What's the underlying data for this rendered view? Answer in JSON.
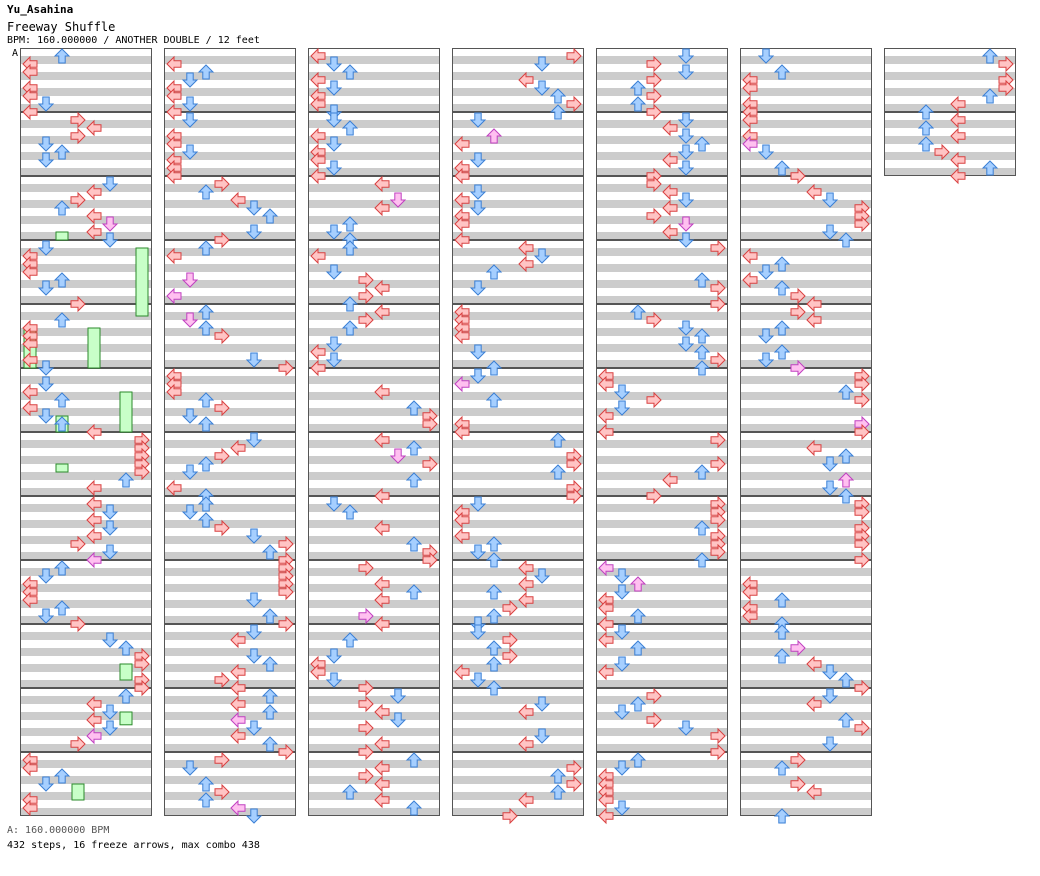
{
  "header": {
    "artist": "Yu_Asahina",
    "title": "Freeway Shuffle",
    "bpm_line": "BPM: 160.000000 / ANOTHER DOUBLE / 12 feet",
    "section_marker": "A"
  },
  "footer": {
    "bpm_note": "A: 160.000000 BPM",
    "stats": "432 steps, 16 freeze arrows, max combo 438"
  },
  "colors": {
    "page_background": "#ffffff",
    "stripe_gray": "#cccccc",
    "measure_border": "#555555",
    "arrow_red_fill": "#ffc4c4",
    "arrow_red_stroke": "#d94040",
    "arrow_blue_fill": "#a6cfff",
    "arrow_blue_stroke": "#3a7fd5",
    "arrow_pink_fill": "#ffc0f0",
    "arrow_pink_stroke": "#c040c0",
    "freeze_fill": "#c8ffc8",
    "freeze_stroke": "#2a8a2a"
  },
  "chart": {
    "style": "double",
    "lanes": [
      "p1-left",
      "p1-down",
      "p1-up",
      "p1-right",
      "p2-left",
      "p2-down",
      "p2-up",
      "p2-right"
    ],
    "columns": 7,
    "measures_per_column": 12,
    "measure_count": 74,
    "freeze_arrows": [
      {
        "measure": 3,
        "lane": 7,
        "start_beat": 0,
        "end_beat": 4.25
      },
      {
        "measure": 4,
        "lane": 0,
        "start_beat": 1.0,
        "end_beat": 3.5
      },
      {
        "measure": 5,
        "lane": 2,
        "start_beat": 2.5,
        "end_beat": 3.5
      },
      {
        "measure": 6,
        "lane": 2,
        "start_beat": 1.5,
        "end_beat": 2.0
      },
      {
        "measure": 9,
        "lane": 6,
        "start_beat": 2.0,
        "end_beat": 3.0
      },
      {
        "measure": 10,
        "lane": 6,
        "start_beat": 1.0,
        "end_beat": 1.8
      },
      {
        "measure": 11,
        "lane": 3,
        "start_beat": 1.5,
        "end_beat": 2.5
      },
      {
        "measure": 2,
        "lane": 2,
        "start_beat": 3.0,
        "end_beat": 3.5
      },
      {
        "measure": 4,
        "lane": 4,
        "start_beat": 1.0,
        "end_beat": 3.5
      },
      {
        "measure": 5,
        "lane": 6,
        "start_beat": 1.0,
        "end_beat": 3.5
      }
    ]
  }
}
